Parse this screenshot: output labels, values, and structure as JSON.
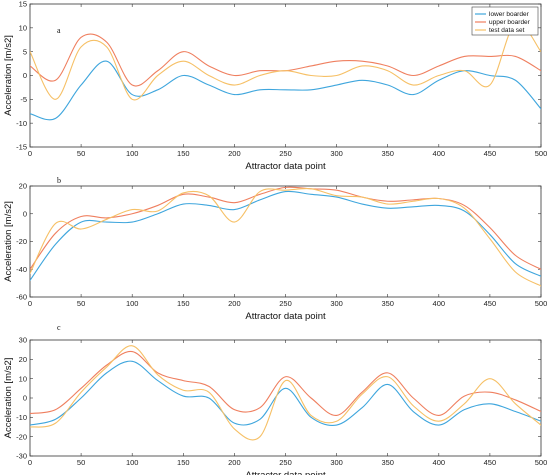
{
  "chart_data": [
    {
      "type": "line",
      "panel_label": "a",
      "xlabel": "Attractor data point",
      "ylabel": "Acceleration [m/s2]",
      "xlim": [
        0,
        500
      ],
      "ylim": [
        -15,
        15
      ],
      "xticks": [
        0,
        50,
        100,
        150,
        200,
        250,
        300,
        350,
        400,
        450,
        500
      ],
      "yticks": [
        -15,
        -10,
        -5,
        0,
        5,
        10,
        15
      ],
      "legend": {
        "position": "top-right"
      },
      "x": [
        0,
        25,
        50,
        75,
        100,
        125,
        150,
        175,
        200,
        225,
        250,
        275,
        300,
        325,
        350,
        375,
        400,
        425,
        450,
        475,
        500
      ],
      "series": [
        {
          "name": "lower boarder",
          "color": "#3fa6dd",
          "values": [
            -8,
            -9,
            -2,
            3,
            -4,
            -3,
            0,
            -2,
            -4,
            -3,
            -3,
            -3,
            -2,
            -1,
            -2,
            -4,
            -1,
            1,
            0,
            -1,
            -7
          ]
        },
        {
          "name": "upper boarder",
          "color": "#ef7f5f",
          "values": [
            2,
            -1,
            8,
            7,
            -2,
            1,
            5,
            2,
            0,
            1,
            1,
            2,
            3,
            3,
            2,
            0,
            2,
            4,
            4,
            4,
            1
          ]
        },
        {
          "name": "test data set",
          "color": "#f6c066",
          "values": [
            5,
            -5,
            6,
            6,
            -5,
            0,
            3,
            0,
            -2,
            0,
            1,
            0,
            0,
            2,
            1,
            -2,
            0,
            1,
            -2,
            11,
            5
          ]
        }
      ]
    },
    {
      "type": "line",
      "panel_label": "b",
      "xlabel": "Attractor data point",
      "ylabel": "Acceleration [m/s2]",
      "xlim": [
        0,
        500
      ],
      "ylim": [
        -60,
        20
      ],
      "xticks": [
        0,
        50,
        100,
        150,
        200,
        250,
        300,
        350,
        400,
        450,
        500
      ],
      "yticks": [
        -60,
        -40,
        -20,
        0,
        20
      ],
      "x": [
        0,
        25,
        50,
        75,
        100,
        125,
        150,
        175,
        200,
        225,
        250,
        275,
        300,
        325,
        350,
        375,
        400,
        425,
        450,
        475,
        500
      ],
      "series": [
        {
          "name": "lower boarder",
          "color": "#3fa6dd",
          "values": [
            -48,
            -22,
            -6,
            -6,
            -6,
            0,
            7,
            6,
            3,
            10,
            16,
            14,
            12,
            7,
            4,
            5,
            6,
            2,
            -15,
            -36,
            -45
          ]
        },
        {
          "name": "upper boarder",
          "color": "#ef7f5f",
          "values": [
            -40,
            -14,
            -2,
            -3,
            0,
            6,
            14,
            12,
            8,
            14,
            19,
            18,
            17,
            12,
            9,
            10,
            11,
            6,
            -10,
            -30,
            -40
          ]
        },
        {
          "name": "test data set",
          "color": "#f6c066",
          "values": [
            -43,
            -7,
            -11,
            -4,
            3,
            2,
            15,
            13,
            -6,
            16,
            17,
            18,
            13,
            12,
            7,
            9,
            11,
            4,
            -18,
            -42,
            -52
          ]
        }
      ]
    },
    {
      "type": "line",
      "panel_label": "c",
      "xlabel": "Attractor data point",
      "ylabel": "Acceleration [m/s2]",
      "xlim": [
        0,
        500
      ],
      "ylim": [
        -30,
        30
      ],
      "xticks": [
        0,
        50,
        100,
        150,
        200,
        250,
        300,
        350,
        400,
        450,
        500
      ],
      "yticks": [
        -30,
        -20,
        -10,
        0,
        10,
        20,
        30
      ],
      "x": [
        0,
        25,
        50,
        75,
        100,
        125,
        150,
        175,
        200,
        225,
        250,
        275,
        300,
        325,
        350,
        375,
        400,
        425,
        450,
        475,
        500
      ],
      "series": [
        {
          "name": "lower boarder",
          "color": "#3fa6dd",
          "values": [
            -14,
            -11,
            0,
            13,
            19,
            9,
            1,
            0,
            -13,
            -11,
            5,
            -10,
            -14,
            -5,
            7,
            -7,
            -14,
            -6,
            -3,
            -7,
            -12
          ]
        },
        {
          "name": "upper boarder",
          "color": "#ef7f5f",
          "values": [
            -8,
            -6,
            5,
            17,
            24,
            13,
            9,
            6,
            -6,
            -5,
            11,
            0,
            -9,
            3,
            13,
            0,
            -9,
            1,
            3,
            -1,
            -7
          ]
        },
        {
          "name": "test data set",
          "color": "#f6c066",
          "values": [
            -15,
            -13,
            3,
            16,
            27,
            12,
            4,
            3,
            -16,
            -20,
            9,
            -9,
            -12,
            2,
            11,
            -4,
            -12,
            -3,
            10,
            -3,
            -14
          ]
        }
      ]
    }
  ]
}
